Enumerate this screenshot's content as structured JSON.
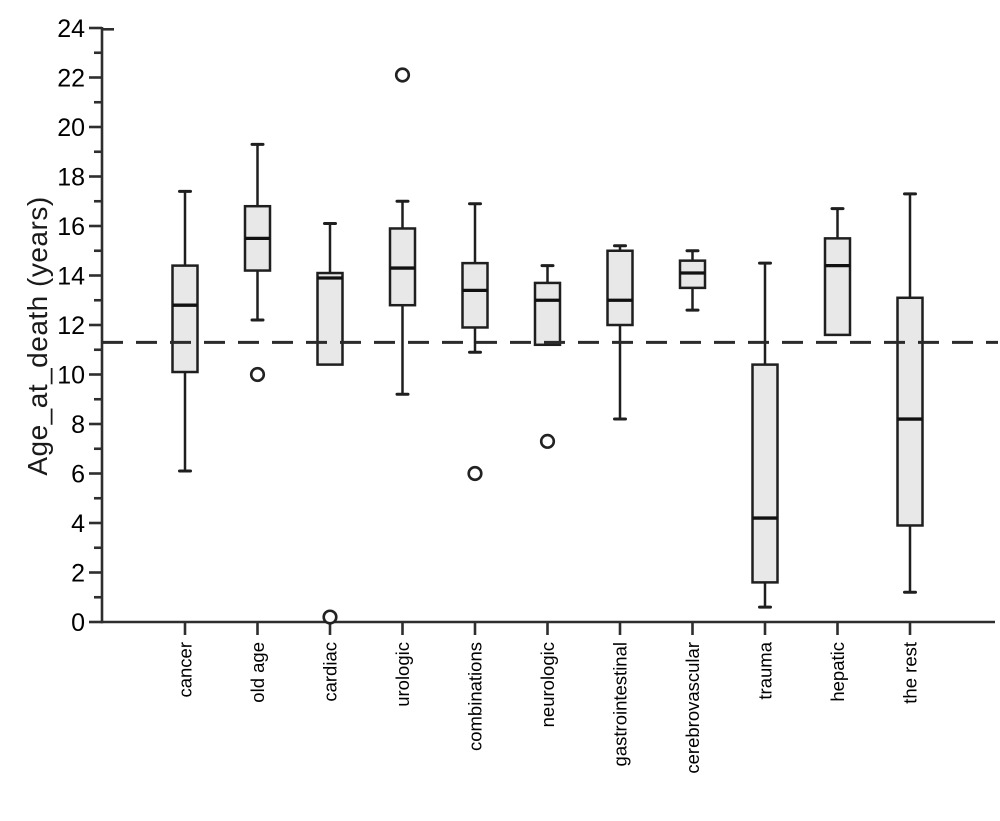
{
  "chart_data": {
    "type": "boxplot",
    "title": "",
    "xlabel": "",
    "ylabel": "Age_at_death (years)",
    "ylim": [
      0,
      24
    ],
    "ytick_step": 2,
    "yminor_step": 1,
    "grid": false,
    "legend": null,
    "reference_line": {
      "value": 11.3,
      "style": "dashed",
      "color": "#2b2b2b"
    },
    "categories": [
      "cancer",
      "old age",
      "cardiac",
      "urologic",
      "combinations",
      "neurologic",
      "gastrointestinal",
      "cerebrovascular",
      "trauma",
      "hepatic",
      "the rest"
    ],
    "boxes": [
      {
        "category": "cancer",
        "whisker_low": 6.1,
        "q1": 10.1,
        "median": 12.8,
        "q3": 14.4,
        "whisker_high": 17.4,
        "outliers": []
      },
      {
        "category": "old age",
        "whisker_low": 12.2,
        "q1": 14.2,
        "median": 15.5,
        "q3": 16.8,
        "whisker_high": 19.3,
        "outliers": [
          10.0
        ]
      },
      {
        "category": "cardiac",
        "whisker_low": 10.4,
        "q1": 10.4,
        "median": 13.9,
        "q3": 14.1,
        "whisker_high": 16.1,
        "outliers": [
          0.2
        ]
      },
      {
        "category": "urologic",
        "whisker_low": 9.2,
        "q1": 12.8,
        "median": 14.3,
        "q3": 15.9,
        "whisker_high": 17.0,
        "outliers": [
          22.1
        ]
      },
      {
        "category": "combinations",
        "whisker_low": 10.9,
        "q1": 11.9,
        "median": 13.4,
        "q3": 14.5,
        "whisker_high": 16.9,
        "outliers": [
          6.0
        ]
      },
      {
        "category": "neurologic",
        "whisker_low": 11.2,
        "q1": 11.2,
        "median": 13.0,
        "q3": 13.7,
        "whisker_high": 14.4,
        "outliers": [
          7.3
        ]
      },
      {
        "category": "gastrointestinal",
        "whisker_low": 8.2,
        "q1": 12.0,
        "median": 13.0,
        "q3": 15.0,
        "whisker_high": 15.2,
        "outliers": []
      },
      {
        "category": "cerebrovascular",
        "whisker_low": 12.6,
        "q1": 13.5,
        "median": 14.1,
        "q3": 14.6,
        "whisker_high": 15.0,
        "outliers": []
      },
      {
        "category": "trauma",
        "whisker_low": 0.6,
        "q1": 1.6,
        "median": 4.2,
        "q3": 10.4,
        "whisker_high": 14.5,
        "outliers": []
      },
      {
        "category": "hepatic",
        "whisker_low": 11.6,
        "q1": 11.6,
        "median": 14.4,
        "q3": 15.5,
        "whisker_high": 16.7,
        "outliers": []
      },
      {
        "category": "the rest",
        "whisker_low": 1.2,
        "q1": 3.9,
        "median": 8.2,
        "q3": 13.1,
        "whisker_high": 17.3,
        "outliers": []
      }
    ],
    "colors": {
      "box_fill": "#e8e8e8",
      "box_stroke": "#1f1f1f",
      "median": "#111111",
      "axis": "#2e2e2e",
      "text": "#000000",
      "background": "#ffffff"
    }
  }
}
